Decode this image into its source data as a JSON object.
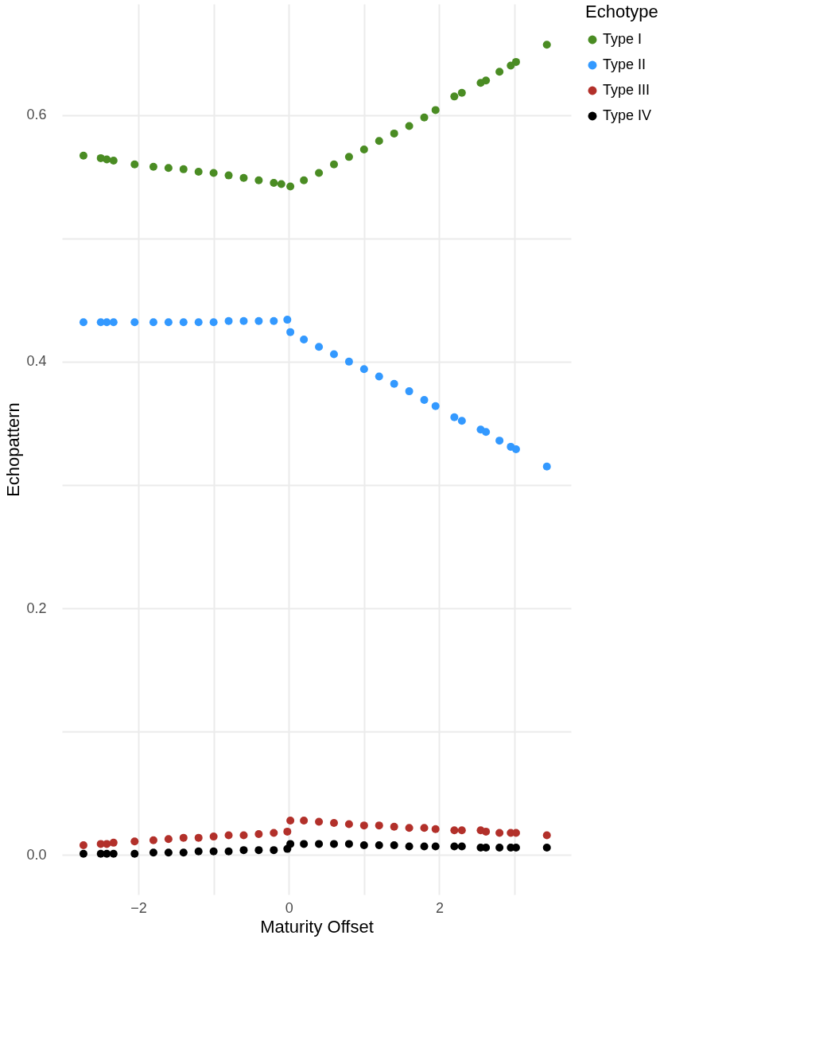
{
  "chart_data": {
    "type": "scatter",
    "xlabel": "Maturity Offset",
    "ylabel": "Echopattern",
    "legend_title": "Echotype",
    "legend": "right",
    "grid": true,
    "marker": "circle",
    "xlim": [
      -3.015,
      3.75
    ],
    "ylim": [
      -0.032,
      0.69
    ],
    "xticks": [
      {
        "value": -2,
        "label": "−2"
      },
      {
        "value": -1,
        "label": null
      },
      0,
      {
        "value": 1,
        "label": null
      },
      2,
      {
        "value": 3,
        "label": null
      }
    ],
    "yticks": [
      {
        "value": 0,
        "label": "0.0"
      },
      {
        "value": 0.1,
        "label": null
      },
      0.2,
      {
        "value": 0.3,
        "label": null
      },
      0.4,
      {
        "value": 0.5,
        "label": null
      },
      0.6
    ],
    "x": [
      -2.73,
      -2.5,
      -2.42,
      -2.33,
      -2.05,
      -1.8,
      -1.6,
      -1.4,
      -1.2,
      -1.0,
      -0.8,
      -0.6,
      -0.4,
      -0.2,
      -0.02,
      0.02,
      0.2,
      0.4,
      0.6,
      0.8,
      1.0,
      1.2,
      1.4,
      1.6,
      1.8,
      1.95,
      2.2,
      2.3,
      2.55,
      2.62,
      2.8,
      2.95,
      3.02,
      3.43
    ],
    "series": [
      {
        "name": "Type I",
        "color": "#4a8c23",
        "x": [
          -2.73,
          -2.5,
          -2.42,
          -2.33,
          -2.05,
          -1.8,
          -1.6,
          -1.4,
          -1.2,
          -1.0,
          -0.8,
          -0.6,
          -0.4,
          -0.2,
          -0.1,
          0.02,
          0.2,
          0.4,
          0.6,
          0.8,
          1.0,
          1.2,
          1.4,
          1.6,
          1.8,
          1.95,
          2.2,
          2.3,
          2.55,
          2.62,
          2.8,
          2.95,
          3.02,
          3.43
        ],
        "values": [
          0.567,
          0.565,
          0.564,
          0.563,
          0.56,
          0.558,
          0.557,
          0.556,
          0.554,
          0.553,
          0.551,
          0.549,
          0.547,
          0.545,
          0.544,
          0.542,
          0.547,
          0.553,
          0.56,
          0.566,
          0.572,
          0.579,
          0.585,
          0.591,
          0.598,
          0.604,
          0.615,
          0.618,
          0.626,
          0.628,
          0.635,
          0.64,
          0.643,
          0.657
        ]
      },
      {
        "name": "Type II",
        "color": "#3399ff",
        "values": [
          0.432,
          0.432,
          0.432,
          0.432,
          0.432,
          0.432,
          0.432,
          0.432,
          0.432,
          0.432,
          0.433,
          0.433,
          0.433,
          0.433,
          0.434,
          0.424,
          0.418,
          0.412,
          0.406,
          0.4,
          0.394,
          0.388,
          0.382,
          0.376,
          0.369,
          0.364,
          0.355,
          0.352,
          0.345,
          0.343,
          0.336,
          0.331,
          0.329,
          0.315
        ]
      },
      {
        "name": "Type III",
        "color": "#b2302a",
        "values": [
          0.008,
          0.009,
          0.009,
          0.01,
          0.011,
          0.012,
          0.013,
          0.014,
          0.014,
          0.015,
          0.016,
          0.016,
          0.017,
          0.018,
          0.019,
          0.028,
          0.028,
          0.027,
          0.026,
          0.025,
          0.024,
          0.024,
          0.023,
          0.022,
          0.022,
          0.021,
          0.02,
          0.02,
          0.02,
          0.019,
          0.018,
          0.018,
          0.018,
          0.016
        ]
      },
      {
        "name": "Type IV",
        "color": "#000000",
        "values": [
          0.001,
          0.001,
          0.001,
          0.001,
          0.001,
          0.002,
          0.002,
          0.002,
          0.003,
          0.003,
          0.003,
          0.004,
          0.004,
          0.004,
          0.005,
          0.009,
          0.009,
          0.009,
          0.009,
          0.009,
          0.008,
          0.008,
          0.008,
          0.007,
          0.007,
          0.007,
          0.007,
          0.007,
          0.006,
          0.006,
          0.006,
          0.006,
          0.006,
          0.006
        ]
      }
    ]
  }
}
